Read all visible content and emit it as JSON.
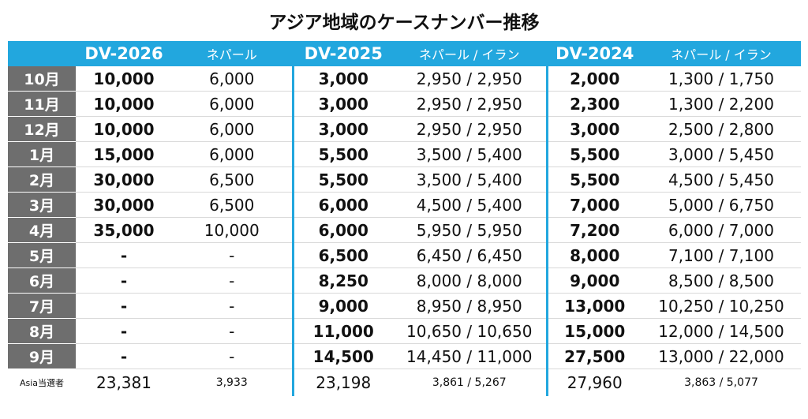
{
  "title": "アジア地域のケースナンバー推移",
  "headers": {
    "dv2026": "DV-2026",
    "dv2026_sub": "ネパール",
    "dv2025": "DV-2025",
    "dv2025_sub": "ネパール / イラン",
    "dv2024": "DV-2024",
    "dv2024_sub": "ネパール / イラン"
  },
  "rows": [
    {
      "month": "10月",
      "dv2026": "10,000",
      "dv2026_np": "6,000",
      "dv2025": "3,000",
      "dv2025_npir": "2,950 / 2,950",
      "dv2024": "2,000",
      "dv2024_npir": "1,300 / 1,750"
    },
    {
      "month": "11月",
      "dv2026": "10,000",
      "dv2026_np": "6,000",
      "dv2025": "3,000",
      "dv2025_npir": "2,950 / 2,950",
      "dv2024": "2,300",
      "dv2024_npir": "1,300 / 2,200"
    },
    {
      "month": "12月",
      "dv2026": "10,000",
      "dv2026_np": "6,000",
      "dv2025": "3,000",
      "dv2025_npir": "2,950 / 2,950",
      "dv2024": "3,000",
      "dv2024_npir": "2,500 / 2,800"
    },
    {
      "month": "1月",
      "dv2026": "15,000",
      "dv2026_np": "6,000",
      "dv2025": "5,500",
      "dv2025_npir": "3,500 / 5,400",
      "dv2024": "5,500",
      "dv2024_npir": "3,000 / 5,450"
    },
    {
      "month": "2月",
      "dv2026": "30,000",
      "dv2026_np": "6,500",
      "dv2025": "5,500",
      "dv2025_npir": "3,500 / 5,400",
      "dv2024": "5,500",
      "dv2024_npir": "4,500 / 5,450"
    },
    {
      "month": "3月",
      "dv2026": "30,000",
      "dv2026_np": "6,500",
      "dv2025": "6,000",
      "dv2025_npir": "4,500 / 5,400",
      "dv2024": "7,000",
      "dv2024_npir": "5,000 / 6,750"
    },
    {
      "month": "4月",
      "dv2026": "35,000",
      "dv2026_np": "10,000",
      "dv2025": "6,000",
      "dv2025_npir": "5,950 / 5,950",
      "dv2024": "7,200",
      "dv2024_npir": "6,000 / 7,000"
    },
    {
      "month": "5月",
      "dv2026": "-",
      "dv2026_np": "-",
      "dv2025": "6,500",
      "dv2025_npir": "6,450 / 6,450",
      "dv2024": "8,000",
      "dv2024_npir": "7,100 / 7,100"
    },
    {
      "month": "6月",
      "dv2026": "-",
      "dv2026_np": "-",
      "dv2025": "8,250",
      "dv2025_npir": "8,000 / 8,000",
      "dv2024": "9,000",
      "dv2024_npir": "8,500 / 8,500"
    },
    {
      "month": "7月",
      "dv2026": "-",
      "dv2026_np": "-",
      "dv2025": "9,000",
      "dv2025_npir": "8,950 / 8,950",
      "dv2024": "13,000",
      "dv2024_npir": "10,250 / 10,250"
    },
    {
      "month": "8月",
      "dv2026": "-",
      "dv2026_np": "-",
      "dv2025": "11,000",
      "dv2025_npir": "10,650 / 10,650",
      "dv2024": "15,000",
      "dv2024_npir": "12,000 / 14,500"
    },
    {
      "month": "9月",
      "dv2026": "-",
      "dv2026_np": "-",
      "dv2025": "14,500",
      "dv2025_npir": "14,450 / 11,000",
      "dv2024": "27,500",
      "dv2024_npir": "13,000 / 22,000"
    }
  ],
  "footer": {
    "label": "Asia当選者",
    "dv2026": "23,381",
    "dv2026_np": "3,933",
    "dv2025": "23,198",
    "dv2025_npir": "3,861 / 5,267",
    "dv2024": "27,960",
    "dv2024_npir": "3,863 / 5,077"
  },
  "colors": {
    "header_bg": "#22a7de",
    "month_bg": "#6e6e6e"
  }
}
